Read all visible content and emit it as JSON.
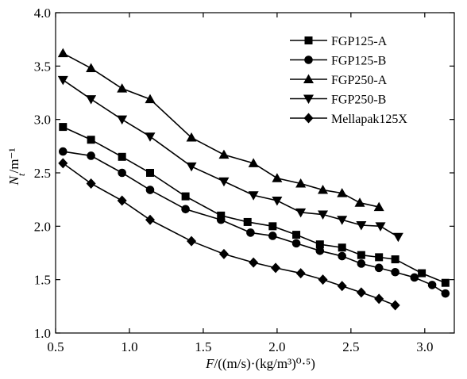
{
  "chart_data": {
    "type": "line",
    "title": "",
    "xlabel": "F/((m/s)·(kg/m³)⁰·⁵)",
    "ylabel": "N_t/m⁻¹",
    "xlim": [
      0.5,
      3.2
    ],
    "ylim": [
      1.0,
      4.0
    ],
    "xticks": [
      "0.5",
      "1.0",
      "1.5",
      "2.0",
      "2.5",
      "3.0"
    ],
    "yticks": [
      "1.0",
      "1.5",
      "2.0",
      "2.5",
      "3.0",
      "3.5",
      "4.0"
    ],
    "grid": false,
    "legend_position": "top-right",
    "series": [
      {
        "name": "FGP125-A",
        "marker": "square",
        "x": [
          0.55,
          0.74,
          0.95,
          1.14,
          1.38,
          1.62,
          1.8,
          1.97,
          2.13,
          2.29,
          2.44,
          2.57,
          2.69,
          2.8,
          2.98,
          3.14
        ],
        "y": [
          2.93,
          2.81,
          2.65,
          2.5,
          2.28,
          2.1,
          2.04,
          2.0,
          1.92,
          1.83,
          1.8,
          1.73,
          1.71,
          1.69,
          1.56,
          1.47
        ]
      },
      {
        "name": "FGP125-B",
        "marker": "circle",
        "x": [
          0.55,
          0.74,
          0.95,
          1.14,
          1.38,
          1.62,
          1.82,
          1.97,
          2.13,
          2.29,
          2.44,
          2.57,
          2.69,
          2.8,
          2.93,
          3.05,
          3.14
        ],
        "y": [
          2.7,
          2.66,
          2.5,
          2.34,
          2.16,
          2.06,
          1.94,
          1.91,
          1.84,
          1.77,
          1.72,
          1.65,
          1.61,
          1.57,
          1.52,
          1.45,
          1.37
        ]
      },
      {
        "name": "FGP250-A",
        "marker": "triangle-up",
        "x": [
          0.55,
          0.74,
          0.95,
          1.14,
          1.42,
          1.64,
          1.84,
          2.0,
          2.16,
          2.31,
          2.44,
          2.56,
          2.69
        ],
        "y": [
          3.62,
          3.48,
          3.29,
          3.19,
          2.83,
          2.67,
          2.59,
          2.45,
          2.4,
          2.34,
          2.31,
          2.22,
          2.18
        ]
      },
      {
        "name": "FGP250-B",
        "marker": "triangle-down",
        "x": [
          0.55,
          0.74,
          0.95,
          1.14,
          1.42,
          1.64,
          1.84,
          2.0,
          2.16,
          2.31,
          2.44,
          2.57,
          2.7,
          2.82
        ],
        "y": [
          3.37,
          3.19,
          3.0,
          2.84,
          2.56,
          2.42,
          2.29,
          2.24,
          2.13,
          2.11,
          2.06,
          2.01,
          2.0,
          1.9
        ]
      },
      {
        "name": "Mellapak125X",
        "marker": "diamond",
        "x": [
          0.55,
          0.74,
          0.95,
          1.14,
          1.42,
          1.64,
          1.84,
          1.99,
          2.16,
          2.31,
          2.44,
          2.57,
          2.69,
          2.8
        ],
        "y": [
          2.59,
          2.4,
          2.24,
          2.06,
          1.86,
          1.74,
          1.66,
          1.61,
          1.56,
          1.5,
          1.44,
          1.38,
          1.32,
          1.26
        ]
      }
    ]
  }
}
